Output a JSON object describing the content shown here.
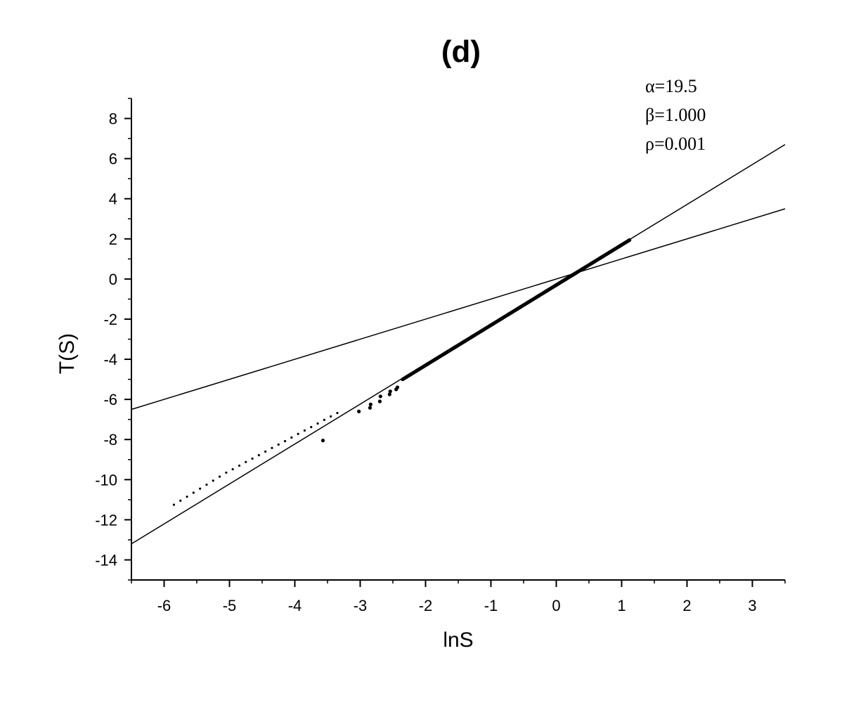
{
  "chart_data": {
    "type": "scatter",
    "title": "(d)",
    "xlabel": "lnS",
    "ylabel": "T(S)",
    "xlim": [
      -6.5,
      3.5
    ],
    "ylim": [
      -15,
      9
    ],
    "xticks": [
      -6,
      -5,
      -4,
      -3,
      -2,
      -1,
      0,
      1,
      2,
      3
    ],
    "yticks": [
      8,
      6,
      4,
      2,
      0,
      -2,
      -4,
      -6,
      -8,
      -10,
      -12,
      -14
    ],
    "grid": false,
    "legend": "none",
    "annotations": [
      "α=19.5",
      "β=1.000",
      "ρ=0.001"
    ],
    "lines": [
      {
        "points": [
          [
            -6.5,
            -13.2
          ],
          [
            3.5,
            6.7
          ]
        ]
      },
      {
        "points": [
          [
            -6.5,
            -6.5
          ],
          [
            3.5,
            3.5
          ]
        ]
      }
    ],
    "series": [
      {
        "x": [
          -3.57,
          -2.85,
          -2.84,
          -2.7,
          -2.69,
          -2.55,
          -2.54,
          -2.45,
          -2.43,
          -3.02
        ],
        "y": [
          -8.05,
          -6.42,
          -6.25,
          -6.1,
          -5.85,
          -5.75,
          -5.6,
          -5.5,
          -5.4,
          -6.6
        ]
      },
      {
        "x": [
          -5.85,
          -5.75,
          -5.65,
          -5.55,
          -5.45,
          -5.35,
          -5.25,
          -5.15,
          -5.05,
          -4.95,
          -4.85,
          -4.75,
          -4.65,
          -4.55,
          -4.45,
          -4.35,
          -4.25,
          -4.15,
          -4.05,
          -3.95,
          -3.85,
          -3.75,
          -3.65,
          -3.55,
          -3.45,
          -3.35
        ],
        "y": [
          -11.25,
          -11.05,
          -10.85,
          -10.65,
          -10.45,
          -10.25,
          -10.05,
          -9.85,
          -9.65,
          -9.48,
          -9.3,
          -9.12,
          -8.95,
          -8.78,
          -8.6,
          -8.42,
          -8.25,
          -8.08,
          -7.9,
          -7.72,
          -7.55,
          -7.38,
          -7.2,
          -7.02,
          -6.85,
          -6.68
        ]
      },
      {
        "x_range": [
          -2.35,
          1.12
        ],
        "intercept": -0.3,
        "slope": 2.0
      }
    ]
  }
}
